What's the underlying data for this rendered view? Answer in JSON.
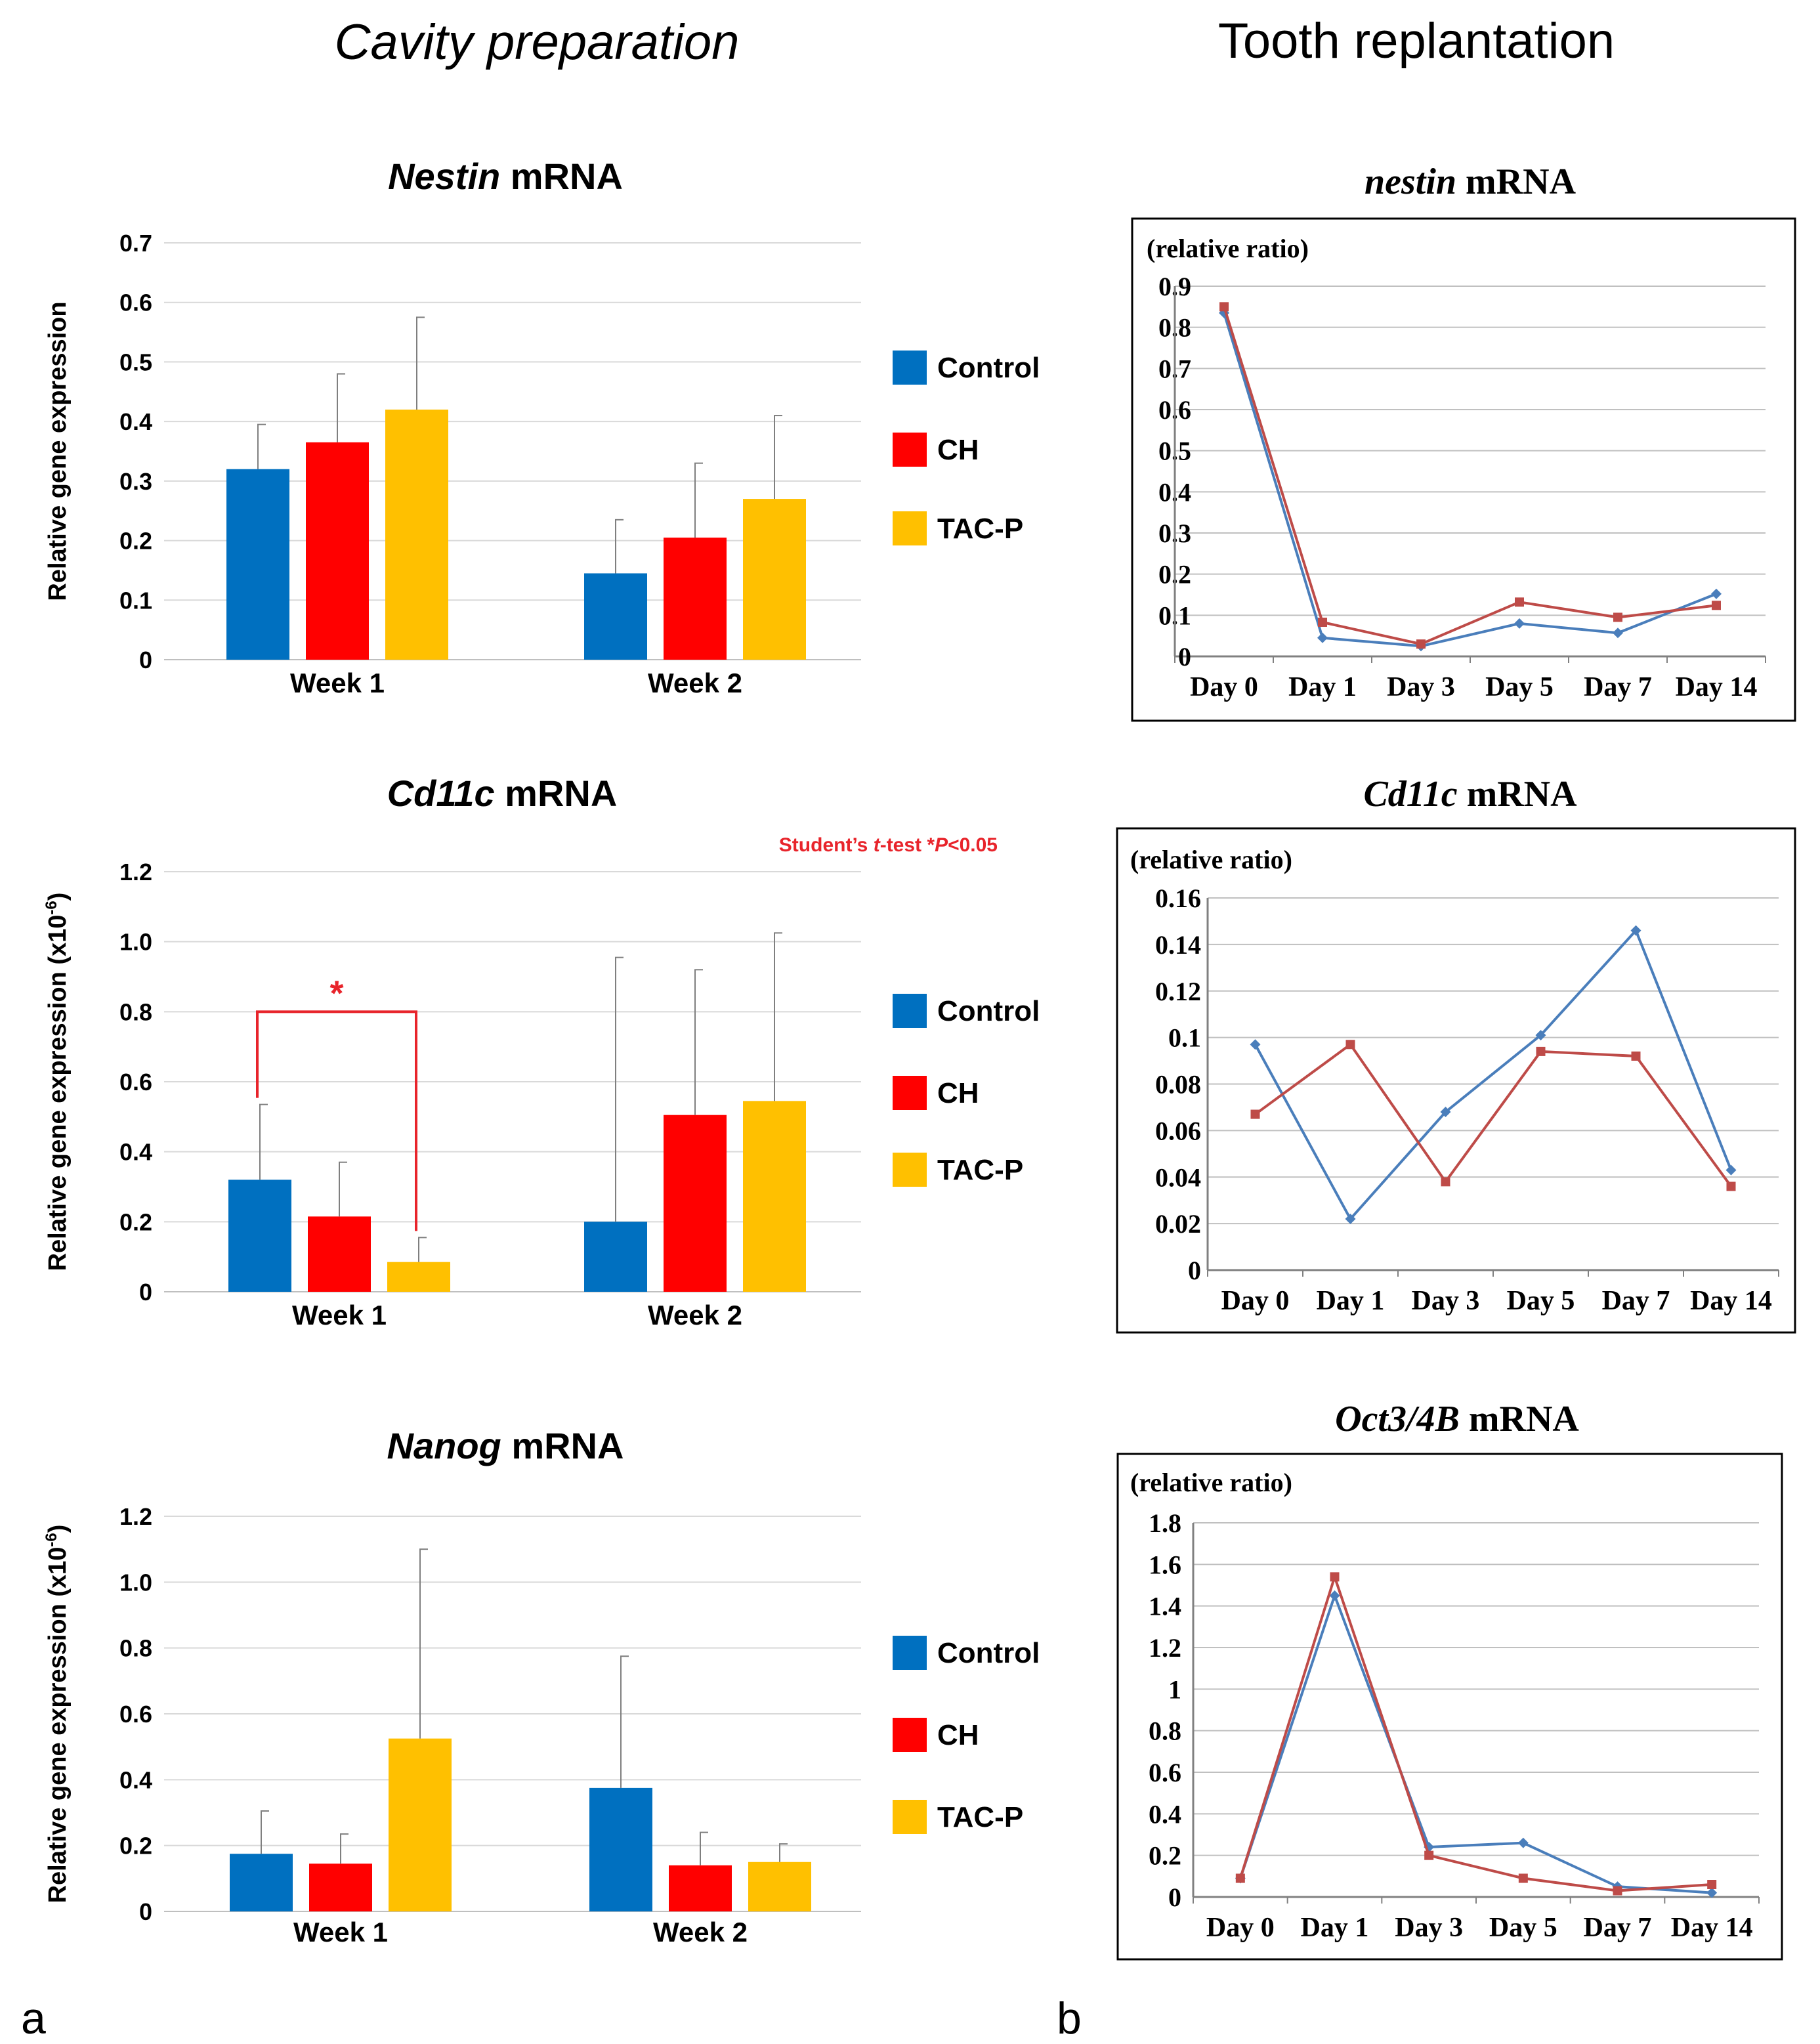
{
  "headings": {
    "left": "Cavity preparation",
    "right": "Tooth replantation",
    "panel_a": "a",
    "panel_b": "b"
  },
  "colors": {
    "control": "#0070C0",
    "ch": "#FF0000",
    "tacp": "#FFC000",
    "line_blue": "#4A7EBB",
    "line_red": "#BE4B48",
    "grid": "#D9D9D9",
    "sig": "#E8242B"
  },
  "chart_data": [
    {
      "id": "nestin-bar",
      "type": "bar",
      "title_italic": "Nestin",
      "title_rest": " mRNA",
      "ylabel": "Relative gene expression",
      "ylim": [
        0,
        0.7
      ],
      "yticks": [
        "0",
        "0.1",
        "0.2",
        "0.3",
        "0.4",
        "0.5",
        "0.6",
        "0.7"
      ],
      "categories": [
        "Week 1",
        "Week 2"
      ],
      "series": [
        {
          "name": "Control",
          "values": [
            0.32,
            0.145
          ],
          "errors": [
            0.075,
            0.09
          ]
        },
        {
          "name": "CH",
          "values": [
            0.365,
            0.205
          ],
          "errors": [
            0.115,
            0.125
          ]
        },
        {
          "name": "TAC-P",
          "values": [
            0.42,
            0.27
          ],
          "errors": [
            0.155,
            0.14
          ]
        }
      ],
      "legend": [
        "Control",
        "CH",
        "TAC-P"
      ]
    },
    {
      "id": "cd11c-bar",
      "type": "bar",
      "title_italic": "Cd11c",
      "title_rest": " mRNA",
      "ylabel": "Relative gene expression (x10",
      "ylabel_sup": "-6",
      "ylabel_end": ")",
      "ylim": [
        0,
        1.2
      ],
      "yticks": [
        "0",
        "0.2",
        "0.4",
        "0.6",
        "0.8",
        "1.0",
        "1.2"
      ],
      "categories": [
        "Week 1",
        "Week 2"
      ],
      "series": [
        {
          "name": "Control",
          "values": [
            0.32,
            0.2
          ],
          "errors": [
            0.215,
            0.755
          ]
        },
        {
          "name": "CH",
          "values": [
            0.215,
            0.505
          ],
          "errors": [
            0.155,
            0.415
          ]
        },
        {
          "name": "TAC-P",
          "values": [
            0.085,
            0.545
          ],
          "errors": [
            0.07,
            0.48
          ]
        }
      ],
      "legend": [
        "Control",
        "CH",
        "TAC-P"
      ],
      "annotation": {
        "parts": [
          "Student’s ",
          "t",
          "-test *",
          "P",
          "<0.05"
        ],
        "significance_mark": "*",
        "bracket_from": "Control",
        "bracket_to": "TAC-P",
        "bracket_level": 0.8
      }
    },
    {
      "id": "nanog-bar",
      "type": "bar",
      "title_italic": "Nanog",
      "title_rest": " mRNA",
      "ylabel": "Relative gene expression (x10",
      "ylabel_sup": "-6",
      "ylabel_end": ")",
      "ylim": [
        0,
        1.2
      ],
      "yticks": [
        "0",
        "0.2",
        "0.4",
        "0.6",
        "0.8",
        "1.0",
        "1.2"
      ],
      "categories": [
        "Week 1",
        "Week 2"
      ],
      "series": [
        {
          "name": "Control",
          "values": [
            0.175,
            0.375
          ],
          "errors": [
            0.13,
            0.4
          ]
        },
        {
          "name": "CH",
          "values": [
            0.145,
            0.14
          ],
          "errors": [
            0.09,
            0.1
          ]
        },
        {
          "name": "TAC-P",
          "values": [
            0.525,
            0.15
          ],
          "errors": [
            0.575,
            0.055
          ]
        }
      ],
      "legend": [
        "Control",
        "CH",
        "TAC-P"
      ]
    },
    {
      "id": "nestin-line",
      "type": "line",
      "title_italic": "nestin",
      "title_rest": " mRNA",
      "unit_label": "(relative ratio)",
      "ylim": [
        0,
        0.9
      ],
      "yticks": [
        "0",
        "0.1",
        "0.2",
        "0.3",
        "0.4",
        "0.5",
        "0.6",
        "0.7",
        "0.8",
        "0.9"
      ],
      "categories": [
        "Day 0",
        "Day 1",
        "Day 3",
        "Day 5",
        "Day 7",
        "Day 14"
      ],
      "series": [
        {
          "name": "blue",
          "marker": "diamond",
          "values": [
            0.835,
            0.045,
            0.025,
            0.08,
            0.057,
            0.152
          ]
        },
        {
          "name": "red",
          "marker": "square",
          "values": [
            0.85,
            0.083,
            0.03,
            0.132,
            0.095,
            0.124
          ]
        }
      ]
    },
    {
      "id": "cd11c-line",
      "type": "line",
      "title_italic": "Cd11c",
      "title_rest": " mRNA",
      "unit_label": "(relative ratio)",
      "ylim": [
        0,
        0.16
      ],
      "yticks": [
        "0",
        "0.02",
        "0.04",
        "0.06",
        "0.08",
        "0.1",
        "0.12",
        "0.14",
        "0.16"
      ],
      "categories": [
        "Day 0",
        "Day 1",
        "Day 3",
        "Day 5",
        "Day 7",
        "Day 14"
      ],
      "series": [
        {
          "name": "blue",
          "marker": "diamond",
          "values": [
            0.097,
            0.022,
            0.068,
            0.101,
            0.146,
            0.043
          ]
        },
        {
          "name": "red",
          "marker": "square",
          "values": [
            0.067,
            0.097,
            0.038,
            0.094,
            0.092,
            0.036
          ]
        }
      ]
    },
    {
      "id": "oct-line",
      "type": "line",
      "title_italic": "Oct3/4B",
      "title_rest": " mRNA",
      "unit_label": "(relative ratio)",
      "ylim": [
        0,
        1.8
      ],
      "yticks": [
        "0",
        "0.2",
        "0.4",
        "0.6",
        "0.8",
        "1",
        "1.2",
        "1.4",
        "1.6",
        "1.8"
      ],
      "categories": [
        "Day 0",
        "Day 1",
        "Day 3",
        "Day 5",
        "Day 7",
        "Day 14"
      ],
      "series": [
        {
          "name": "blue",
          "marker": "diamond",
          "values": [
            0.09,
            1.45,
            0.24,
            0.26,
            0.05,
            0.02
          ]
        },
        {
          "name": "red",
          "marker": "square",
          "values": [
            0.09,
            1.54,
            0.2,
            0.09,
            0.03,
            0.06
          ]
        }
      ]
    }
  ]
}
